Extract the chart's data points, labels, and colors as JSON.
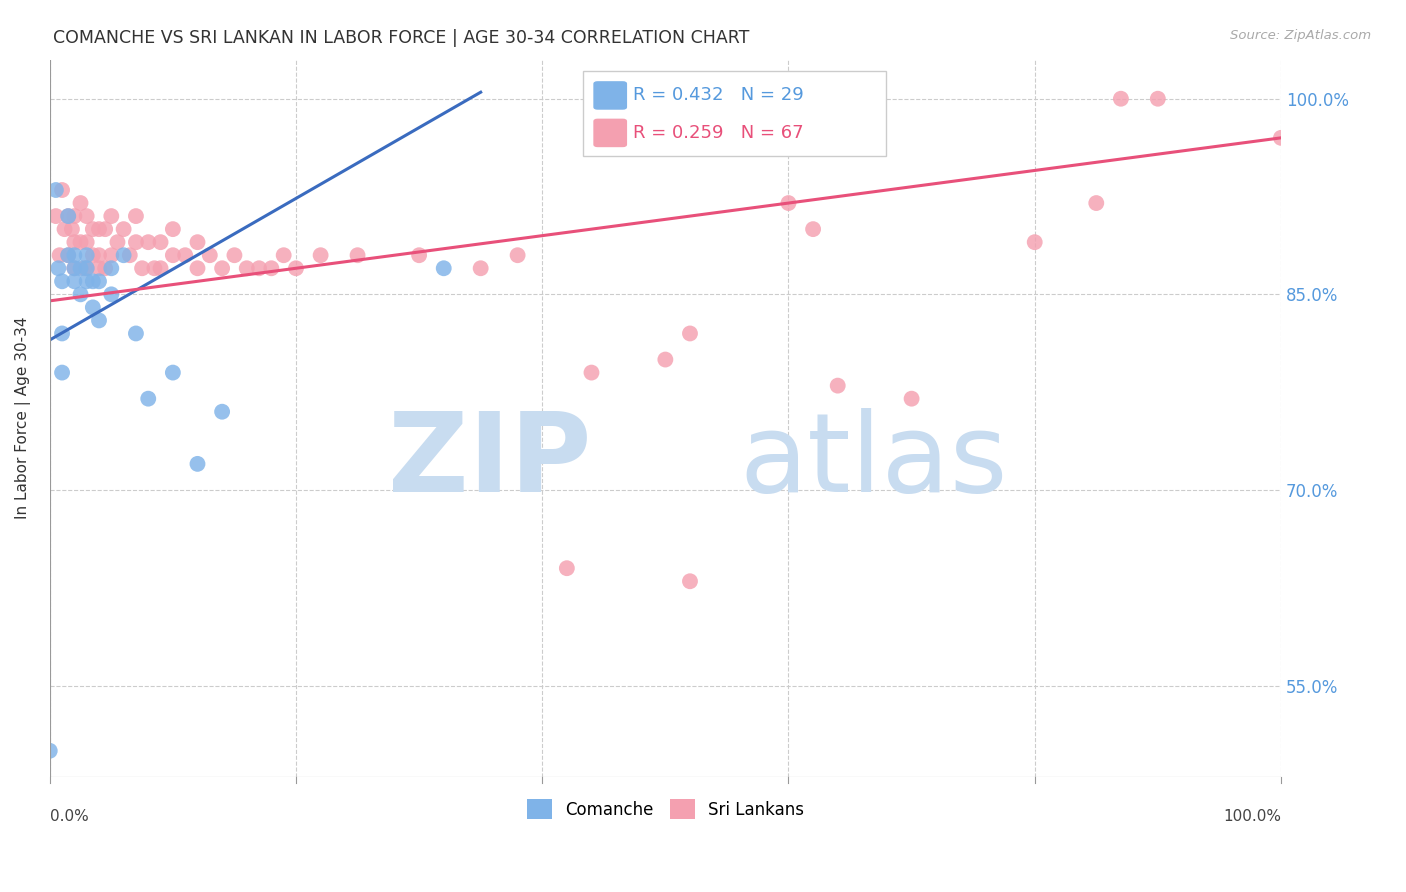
{
  "title": "COMANCHE VS SRI LANKAN IN LABOR FORCE | AGE 30-34 CORRELATION CHART",
  "source": "Source: ZipAtlas.com",
  "ylabel": "In Labor Force | Age 30-34",
  "comanche_R": 0.432,
  "comanche_N": 29,
  "srilanka_R": 0.259,
  "srilanka_N": 67,
  "comanche_color": "#7fb3e8",
  "srilanka_color": "#f4a0b0",
  "comanche_line_color": "#3a6bbf",
  "srilanka_line_color": "#e8507a",
  "xlim": [
    0,
    1
  ],
  "ylim": [
    0.48,
    1.03
  ],
  "yticks": [
    0.55,
    0.7,
    0.85,
    1.0
  ],
  "ytick_labels": [
    "55.0%",
    "70.0%",
    "85.0%",
    "100.0%"
  ],
  "comanche_x": [
    0.0,
    0.005,
    0.007,
    0.01,
    0.01,
    0.01,
    0.015,
    0.015,
    0.02,
    0.02,
    0.02,
    0.025,
    0.025,
    0.03,
    0.03,
    0.03,
    0.035,
    0.035,
    0.04,
    0.04,
    0.05,
    0.05,
    0.06,
    0.07,
    0.08,
    0.1,
    0.12,
    0.14,
    0.32
  ],
  "comanche_y": [
    0.5,
    0.93,
    0.87,
    0.86,
    0.82,
    0.79,
    0.91,
    0.88,
    0.88,
    0.87,
    0.86,
    0.87,
    0.85,
    0.88,
    0.87,
    0.86,
    0.86,
    0.84,
    0.86,
    0.83,
    0.87,
    0.85,
    0.88,
    0.82,
    0.77,
    0.79,
    0.72,
    0.76,
    0.87
  ],
  "srilanka_x": [
    0.005,
    0.008,
    0.01,
    0.012,
    0.015,
    0.015,
    0.018,
    0.02,
    0.02,
    0.02,
    0.025,
    0.025,
    0.028,
    0.03,
    0.03,
    0.03,
    0.035,
    0.035,
    0.04,
    0.04,
    0.04,
    0.045,
    0.045,
    0.05,
    0.05,
    0.055,
    0.06,
    0.065,
    0.07,
    0.07,
    0.075,
    0.08,
    0.085,
    0.09,
    0.09,
    0.1,
    0.1,
    0.11,
    0.12,
    0.12,
    0.13,
    0.14,
    0.15,
    0.16,
    0.17,
    0.18,
    0.19,
    0.2,
    0.22,
    0.25,
    0.3,
    0.35,
    0.38,
    0.44,
    0.5,
    0.52,
    0.6,
    0.62,
    0.64,
    0.7,
    0.8,
    0.85,
    0.87,
    0.9,
    1.0,
    0.42,
    0.52
  ],
  "srilanka_y": [
    0.91,
    0.88,
    0.93,
    0.9,
    0.91,
    0.88,
    0.9,
    0.91,
    0.89,
    0.87,
    0.92,
    0.89,
    0.87,
    0.91,
    0.89,
    0.87,
    0.9,
    0.88,
    0.9,
    0.88,
    0.87,
    0.9,
    0.87,
    0.91,
    0.88,
    0.89,
    0.9,
    0.88,
    0.91,
    0.89,
    0.87,
    0.89,
    0.87,
    0.89,
    0.87,
    0.9,
    0.88,
    0.88,
    0.89,
    0.87,
    0.88,
    0.87,
    0.88,
    0.87,
    0.87,
    0.87,
    0.88,
    0.87,
    0.88,
    0.88,
    0.88,
    0.87,
    0.88,
    0.79,
    0.8,
    0.82,
    0.92,
    0.9,
    0.78,
    0.77,
    0.89,
    0.92,
    1.0,
    1.0,
    0.97,
    0.64,
    0.63
  ],
  "comanche_line_x": [
    0.0,
    0.35
  ],
  "comanche_line_y": [
    0.815,
    1.005
  ],
  "srilanka_line_x": [
    0.0,
    1.0
  ],
  "srilanka_line_y": [
    0.845,
    0.97
  ]
}
